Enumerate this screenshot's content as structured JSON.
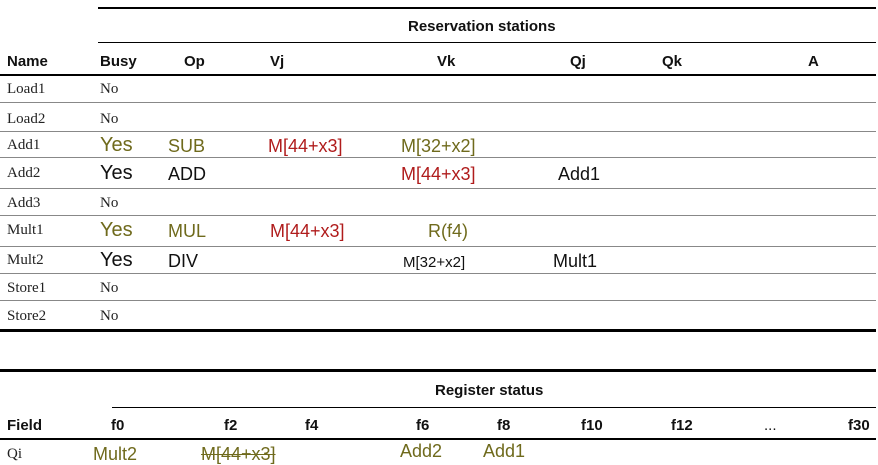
{
  "rs": {
    "caption": "Reservation stations",
    "headers": [
      "Name",
      "Busy",
      "Op",
      "Vj",
      "Vk",
      "Qj",
      "Qk",
      "A"
    ],
    "rows": [
      {
        "name": "Load1",
        "busy": "No",
        "op": "",
        "vj": "",
        "vk": "",
        "qj": "",
        "qk": "",
        "a": ""
      },
      {
        "name": "Load2",
        "busy": "No",
        "op": "",
        "vj": "",
        "vk": "",
        "qj": "",
        "qk": "",
        "a": ""
      },
      {
        "name": "Add1",
        "busy": "Yes",
        "op": "SUB",
        "vj": "M[44+x3]",
        "vk": "M[32+x2]",
        "qj": "",
        "qk": "",
        "a": ""
      },
      {
        "name": "Add2",
        "busy": "Yes",
        "op": "ADD",
        "vj": "",
        "vk": "M[44+x3]",
        "qj": "Add1",
        "qk": "",
        "a": ""
      },
      {
        "name": "Add3",
        "busy": "No",
        "op": "",
        "vj": "",
        "vk": "",
        "qj": "",
        "qk": "",
        "a": ""
      },
      {
        "name": "Mult1",
        "busy": "Yes",
        "op": "MUL",
        "vj": "M[44+x3]",
        "vk": "R(f4)",
        "qj": "",
        "qk": "",
        "a": ""
      },
      {
        "name": "Mult2",
        "busy": "Yes",
        "op": "DIV",
        "vj": "",
        "vk": "M[32+x2]",
        "qj": "Mult1",
        "qk": "",
        "a": ""
      },
      {
        "name": "Store1",
        "busy": "No",
        "op": "",
        "vj": "",
        "vk": "",
        "qj": "",
        "qk": "",
        "a": ""
      },
      {
        "name": "Store2",
        "busy": "No",
        "op": "",
        "vj": "",
        "vk": "",
        "qj": "",
        "qk": "",
        "a": ""
      }
    ]
  },
  "reg": {
    "caption": "Register status",
    "field_label": "Field",
    "registers": [
      "f0",
      "f2",
      "f4",
      "f6",
      "f8",
      "f10",
      "f12",
      "...",
      "f30"
    ],
    "row_label": "Qi",
    "qi": [
      "Mult2",
      "M[44+x3]",
      "",
      "Add2",
      "Add1",
      "",
      "",
      "",
      ""
    ]
  },
  "colors": {
    "olive": "#6f6a1c",
    "red": "#b01c1c",
    "black": "#111111"
  }
}
